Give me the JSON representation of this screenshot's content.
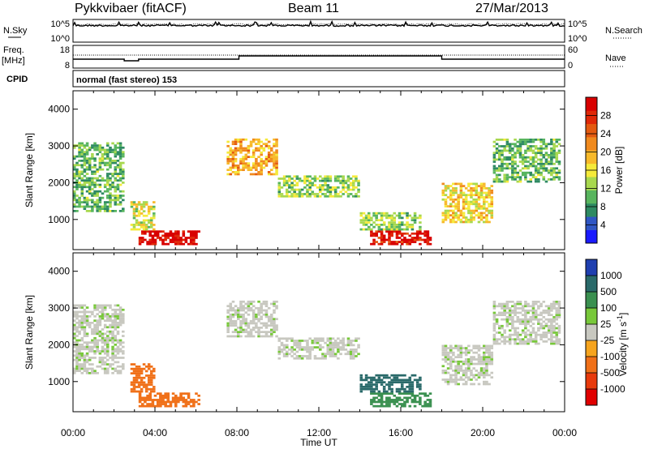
{
  "header": {
    "station": "Pykkvibaer (fitACF)",
    "beam": "Beam 11",
    "date": "27/Mar/2013"
  },
  "noise_panel": {
    "left_label": "N.Sky",
    "right_label": "N.Search",
    "left_ticks": [
      "10^5",
      "10^0"
    ],
    "right_ticks": [
      "10^5",
      "10^0"
    ]
  },
  "freq_panel": {
    "left_label_1": "Freq.",
    "left_label_2": "[MHz]",
    "left_ticks": [
      "18",
      "8"
    ],
    "right_label": "Nave",
    "right_ticks": [
      "60",
      "0"
    ]
  },
  "cpid_panel": {
    "label": "CPID",
    "text": "normal (fast stereo) 153"
  },
  "chart_data": [
    {
      "type": "heatmap",
      "title": "",
      "quantity": "Power",
      "xlabel": "Time UT",
      "ylabel": "Slant Range [km]",
      "xlim": [
        "00:00",
        "24:00"
      ],
      "ylim": [
        180,
        4500
      ],
      "xticks": [
        "00:00",
        "04:00",
        "08:00",
        "12:00",
        "16:00",
        "20:00",
        "00:00"
      ],
      "yticks": [
        1000,
        2000,
        3000,
        4000
      ],
      "colorbar": {
        "label": "Power [dB]",
        "ticks": [
          "4",
          "8",
          "12",
          "16",
          "20",
          "24",
          "28"
        ],
        "colors": [
          "#1a1aff",
          "#2f56c4",
          "#2e8a62",
          "#58b55e",
          "#a8d84e",
          "#f5ea3a",
          "#f7b92a",
          "#f08a1e",
          "#e45a10",
          "#e02808",
          "#d80000"
        ]
      },
      "regions": [
        {
          "t0": 0.0,
          "t1": 2.5,
          "r0": 1200,
          "r1": 3100,
          "value": 10
        },
        {
          "t0": 3.2,
          "t1": 6.2,
          "r0": 300,
          "r1": 700,
          "value": 28
        },
        {
          "t0": 2.8,
          "t1": 4.0,
          "r0": 700,
          "r1": 1500,
          "value": 14
        },
        {
          "t0": 7.5,
          "t1": 10.0,
          "r0": 2200,
          "r1": 3200,
          "value": 18
        },
        {
          "t0": 10.0,
          "t1": 14.0,
          "r0": 1600,
          "r1": 2200,
          "value": 12
        },
        {
          "t0": 14.5,
          "t1": 17.5,
          "r0": 300,
          "r1": 700,
          "value": 27
        },
        {
          "t0": 14.0,
          "t1": 17.0,
          "r0": 700,
          "r1": 1200,
          "value": 12
        },
        {
          "t0": 18.0,
          "t1": 20.5,
          "r0": 900,
          "r1": 2000,
          "value": 16
        },
        {
          "t0": 20.5,
          "t1": 23.8,
          "r0": 2000,
          "r1": 3200,
          "value": 10
        }
      ]
    },
    {
      "type": "heatmap",
      "title": "",
      "quantity": "Velocity",
      "xlabel": "Time UT",
      "ylabel": "Slant Range [km]",
      "xlim": [
        "00:00",
        "24:00"
      ],
      "ylim": [
        180,
        4500
      ],
      "xticks": [
        "00:00",
        "04:00",
        "08:00",
        "12:00",
        "16:00",
        "20:00",
        "00:00"
      ],
      "yticks": [
        1000,
        2000,
        3000,
        4000
      ],
      "colorbar": {
        "label": "Velocity [m s^-1]",
        "ticks": [
          "1000",
          "500",
          "100",
          "25",
          "-25",
          "-100",
          "-500",
          "-1000"
        ],
        "colors": [
          "#1f3fb0",
          "#2a6a6a",
          "#3a9050",
          "#78c83a",
          "#c8c8c0",
          "#f6a41e",
          "#f07018",
          "#e83a0c",
          "#e00000"
        ]
      },
      "regions": [
        {
          "t0": 0.0,
          "t1": 2.5,
          "r0": 1200,
          "r1": 3100,
          "value": 0
        },
        {
          "t0": 3.2,
          "t1": 6.2,
          "r0": 300,
          "r1": 700,
          "value": -200
        },
        {
          "t0": 2.8,
          "t1": 4.0,
          "r0": 700,
          "r1": 1500,
          "value": -150
        },
        {
          "t0": 7.5,
          "t1": 10.0,
          "r0": 2200,
          "r1": 3200,
          "value": 0
        },
        {
          "t0": 10.0,
          "t1": 14.0,
          "r0": 1600,
          "r1": 2200,
          "value": 0
        },
        {
          "t0": 14.5,
          "t1": 17.5,
          "r0": 300,
          "r1": 700,
          "value": 60
        },
        {
          "t0": 14.0,
          "t1": 17.0,
          "r0": 700,
          "r1": 1200,
          "value": 150
        },
        {
          "t0": 18.0,
          "t1": 20.5,
          "r0": 900,
          "r1": 2000,
          "value": 0
        },
        {
          "t0": 20.5,
          "t1": 23.8,
          "r0": 2000,
          "r1": 3200,
          "value": 0
        }
      ]
    }
  ]
}
